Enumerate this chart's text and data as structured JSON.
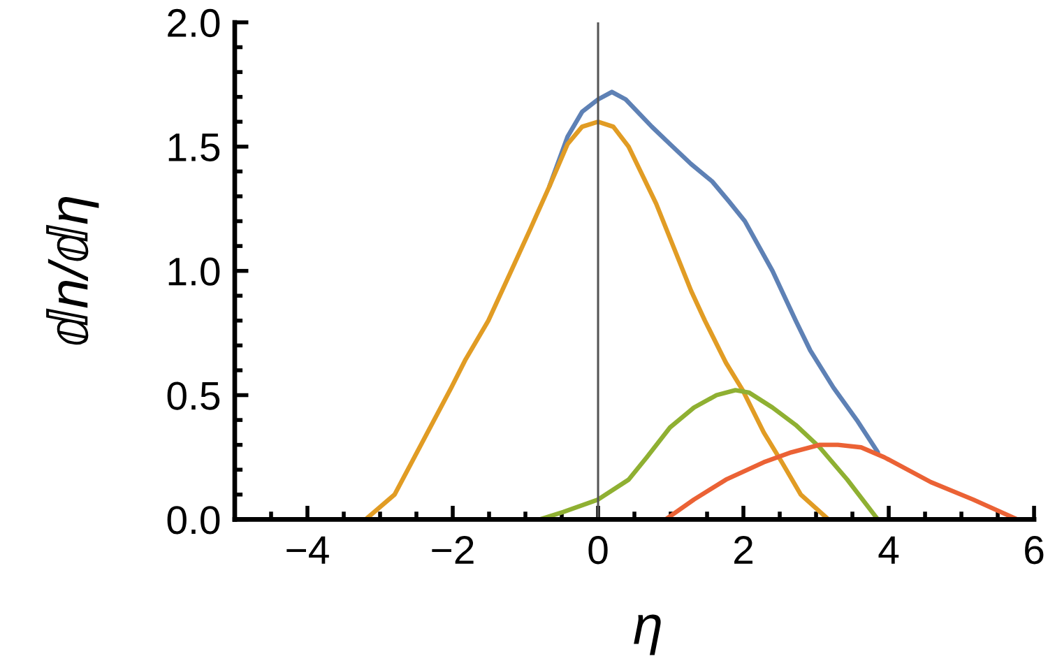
{
  "chart_data": {
    "type": "line",
    "xlabel": "η",
    "ylabel": "ⅆn/ⅆη",
    "xlim": [
      -5,
      6
    ],
    "ylim": [
      0,
      2
    ],
    "xticks": [
      {
        "value": -4,
        "label": "−4"
      },
      {
        "value": -2,
        "label": "−2"
      },
      0,
      2,
      4,
      6,
      {
        "value": -4.5,
        "label": null
      },
      {
        "value": -3.5,
        "label": null
      },
      {
        "value": -3,
        "label": null
      },
      {
        "value": -2.5,
        "label": null
      },
      {
        "value": -1.5,
        "label": null
      },
      {
        "value": -1,
        "label": null
      },
      {
        "value": -0.5,
        "label": null
      },
      {
        "value": 0.5,
        "label": null
      },
      {
        "value": 1,
        "label": null
      },
      {
        "value": 1.5,
        "label": null
      },
      {
        "value": 2.5,
        "label": null
      },
      {
        "value": 3,
        "label": null
      },
      {
        "value": 3.5,
        "label": null
      },
      {
        "value": 4.5,
        "label": null
      },
      {
        "value": 5,
        "label": null
      },
      {
        "value": 5.5,
        "label": null
      }
    ],
    "yticks": [
      {
        "value": 0,
        "label": "0.0"
      },
      0.5,
      {
        "value": 1,
        "label": "1.0"
      },
      1.5,
      {
        "value": 2,
        "label": "2.0"
      },
      {
        "value": 0.1,
        "label": null
      },
      {
        "value": 0.2,
        "label": null
      },
      {
        "value": 0.3,
        "label": null
      },
      {
        "value": 0.4,
        "label": null
      },
      {
        "value": 0.6,
        "label": null
      },
      {
        "value": 0.7,
        "label": null
      },
      {
        "value": 0.8,
        "label": null
      },
      {
        "value": 0.9,
        "label": null
      },
      {
        "value": 1.1,
        "label": null
      },
      {
        "value": 1.2,
        "label": null
      },
      {
        "value": 1.3,
        "label": null
      },
      {
        "value": 1.4,
        "label": null
      },
      {
        "value": 1.6,
        "label": null
      },
      {
        "value": 1.7,
        "label": null
      },
      {
        "value": 1.8,
        "label": null
      },
      {
        "value": 1.9,
        "label": null
      }
    ],
    "ref_lines": [
      {
        "axis": "x",
        "value": 0,
        "color": "#555555"
      }
    ],
    "series": [
      {
        "color": "#5e81b5",
        "x": [
          -0.67,
          -0.42,
          -0.22,
          0,
          0.19,
          0.38,
          0.74,
          0.99,
          1.28,
          1.57,
          1.8,
          2.02,
          2.4,
          2.72,
          2.92,
          3.24,
          3.56,
          3.85
        ],
        "values": [
          1.34,
          1.54,
          1.64,
          1.69,
          1.72,
          1.69,
          1.58,
          1.51,
          1.43,
          1.36,
          1.28,
          1.2,
          1.0,
          0.8,
          0.68,
          0.53,
          0.4,
          0.27
        ]
      },
      {
        "color": "#e19c24",
        "x": [
          -3.2,
          -2.8,
          -2.02,
          -1.83,
          -1.51,
          -1.18,
          -0.93,
          -0.67,
          -0.42,
          -0.22,
          0,
          0.21,
          0.42,
          0.8,
          1.28,
          1.47,
          1.76,
          1.99,
          2.28,
          2.53,
          2.79,
          3.17
        ],
        "values": [
          0,
          0.1,
          0.53,
          0.64,
          0.8,
          1.01,
          1.17,
          1.34,
          1.51,
          1.58,
          1.6,
          1.58,
          1.5,
          1.27,
          0.92,
          0.8,
          0.63,
          0.52,
          0.35,
          0.23,
          0.1,
          0
        ]
      },
      {
        "color": "#8fb032",
        "x": [
          -0.8,
          -0.48,
          0,
          0.42,
          0.67,
          0.99,
          1.32,
          1.63,
          1.89,
          2.08,
          2.4,
          2.72,
          3.05,
          3.43,
          3.85
        ],
        "values": [
          0,
          0.03,
          0.08,
          0.16,
          0.25,
          0.37,
          0.45,
          0.5,
          0.52,
          0.51,
          0.45,
          0.38,
          0.29,
          0.16,
          0
        ]
      },
      {
        "color": "#eb6235",
        "x": [
          0.93,
          1.32,
          1.76,
          2.28,
          2.66,
          3.05,
          3.3,
          3.62,
          3.94,
          4.58,
          5.16,
          5.77
        ],
        "values": [
          0,
          0.08,
          0.16,
          0.23,
          0.27,
          0.3,
          0.3,
          0.29,
          0.25,
          0.15,
          0.08,
          0
        ]
      }
    ]
  }
}
